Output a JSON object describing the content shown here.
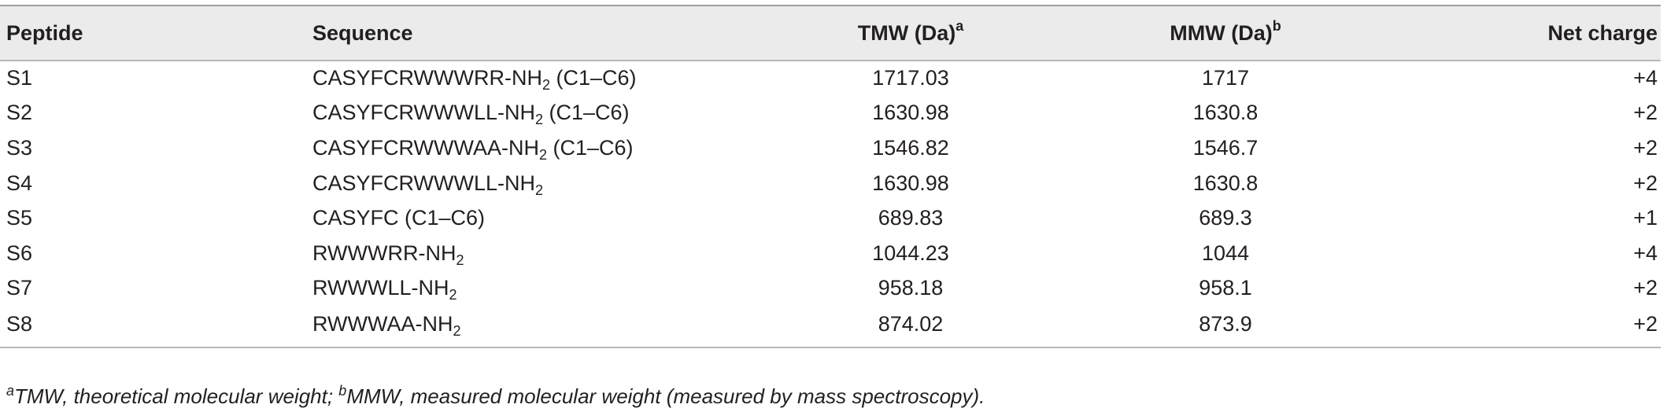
{
  "table": {
    "headers": {
      "peptide": "Peptide",
      "sequence": "Sequence",
      "tmw": "TMW (Da)",
      "tmw_sup": "a",
      "mmw": "MMW (Da)",
      "mmw_sup": "b",
      "charge": "Net charge"
    },
    "rows": [
      {
        "peptide": "S1",
        "seq_main": "CASYFCRWWWRR-NH",
        "seq_sub": "2",
        "seq_suffix": " (C1–C6)",
        "tmw": "1717.03",
        "mmw": "1717",
        "charge": "+4"
      },
      {
        "peptide": "S2",
        "seq_main": "CASYFCRWWWLL-NH",
        "seq_sub": "2",
        "seq_suffix": " (C1–C6)",
        "tmw": "1630.98",
        "mmw": "1630.8",
        "charge": "+2"
      },
      {
        "peptide": "S3",
        "seq_main": "CASYFCRWWWAA-NH",
        "seq_sub": "2",
        "seq_suffix": " (C1–C6)",
        "tmw": "1546.82",
        "mmw": "1546.7",
        "charge": "+2"
      },
      {
        "peptide": "S4",
        "seq_main": "CASYFCRWWWLL-NH",
        "seq_sub": "2",
        "seq_suffix": "",
        "tmw": "1630.98",
        "mmw": "1630.8",
        "charge": "+2"
      },
      {
        "peptide": "S5",
        "seq_main": "CASYFC (C1–C6)",
        "seq_sub": "",
        "seq_suffix": "",
        "tmw": "689.83",
        "mmw": "689.3",
        "charge": "+1"
      },
      {
        "peptide": "S6",
        "seq_main": "RWWWRR-NH",
        "seq_sub": "2",
        "seq_suffix": "",
        "tmw": "1044.23",
        "mmw": "1044",
        "charge": "+4"
      },
      {
        "peptide": "S7",
        "seq_main": "RWWWLL-NH",
        "seq_sub": "2",
        "seq_suffix": "",
        "tmw": "958.18",
        "mmw": "958.1",
        "charge": "+2"
      },
      {
        "peptide": "S8",
        "seq_main": "RWWWAA-NH",
        "seq_sub": "2",
        "seq_suffix": "",
        "tmw": "874.02",
        "mmw": "873.9",
        "charge": "+2"
      }
    ]
  },
  "footnote": {
    "sup_a": "a",
    "text_a": "TMW, theoretical molecular weight; ",
    "sup_b": "b",
    "text_b": "MMW, measured molecular weight (measured by mass spectroscopy)."
  }
}
